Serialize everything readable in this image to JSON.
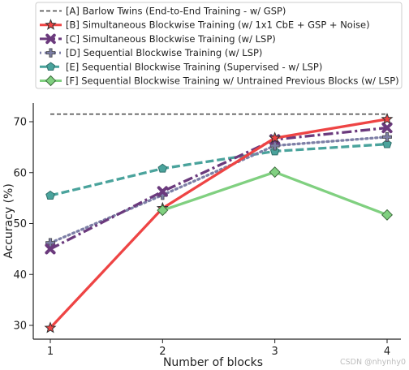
{
  "chart_data": {
    "type": "line",
    "x": [
      1,
      2,
      3,
      4
    ],
    "xlabel": "Number of blocks",
    "ylabel": "Accuracy (%)",
    "xlim": [
      0.85,
      4.15
    ],
    "ylim": [
      28,
      74.5
    ],
    "xticks": [
      "1",
      "2",
      "3",
      "4"
    ],
    "yticks": [
      "30",
      "40",
      "50",
      "60",
      "70"
    ],
    "grid": false,
    "legend_position": "top",
    "series": [
      {
        "name": "[A] Barlow Twins (End-to-End Training - w/ GSP)",
        "values": [
          71.5,
          71.5,
          71.5,
          71.5
        ],
        "color": "#444444",
        "style": "dashed",
        "marker": "none"
      },
      {
        "name": "[B] Simultaneous Blockwise Training (w/ 1x1 CbE + GSP + Noise)",
        "values": [
          29.5,
          53.0,
          66.8,
          70.5
        ],
        "color": "#ee4444",
        "style": "solid",
        "marker": "star"
      },
      {
        "name": "[C] Simultaneous Blockwise Training (w/ LSP)",
        "values": [
          45.0,
          56.3,
          66.5,
          68.8
        ],
        "color": "#6b3a7d",
        "style": "dashdot",
        "marker": "x"
      },
      {
        "name": "[D] Sequential Blockwise Training (w/ LSP)",
        "values": [
          46.2,
          55.6,
          65.3,
          67.0
        ],
        "color": "#7d7fa6",
        "style": "dotted",
        "marker": "plus"
      },
      {
        "name": "[E] Sequential Blockwise Training (Supervised - w/ LSP)",
        "values": [
          55.5,
          60.8,
          64.2,
          65.6
        ],
        "color": "#4aa39c",
        "style": "dashed",
        "marker": "pentagon"
      },
      {
        "name": "[F] Sequential Blockwise Training w/ Untrained Previous Blocks (w/ LSP)",
        "values": [
          null,
          52.6,
          60.1,
          51.7
        ],
        "color": "#80d080",
        "style": "solid",
        "marker": "diamond"
      }
    ]
  },
  "watermark": "CSDN @nhynhy0"
}
